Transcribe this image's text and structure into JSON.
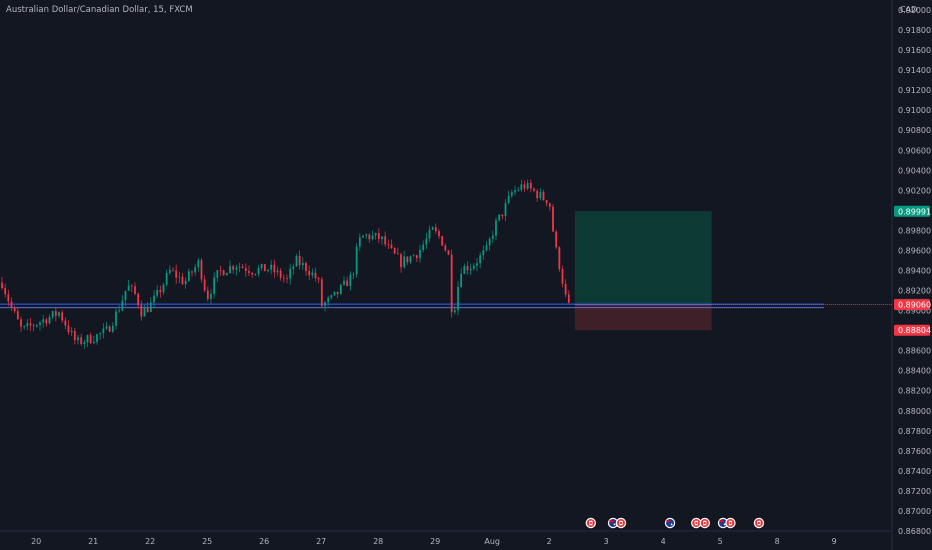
{
  "header": {
    "title": "Australian Dollar/Canadian Dollar, 15, FXCM"
  },
  "chart_data": {
    "type": "candlestick",
    "currency": "CAD",
    "ylim": [
      0.868,
      0.921
    ],
    "y_ticks": [
      "0.92000",
      "0.91800",
      "0.91600",
      "0.91400",
      "0.91200",
      "0.91000",
      "0.90800",
      "0.90600",
      "0.90400",
      "0.90200",
      "0.89800",
      "0.89600",
      "0.89400",
      "0.89200",
      "0.89000",
      "0.88600",
      "0.88400",
      "0.88200",
      "0.88000",
      "0.87800",
      "0.87600",
      "0.87400",
      "0.87200",
      "0.87000",
      "0.86800"
    ],
    "x_ticks": [
      "20",
      "21",
      "22",
      "25",
      "26",
      "27",
      "28",
      "29",
      "Aug",
      "2",
      "3",
      "4",
      "5",
      "8",
      "9"
    ],
    "x_tick_index": [
      0.6,
      1.6,
      2.6,
      3.6,
      4.6,
      5.6,
      6.6,
      7.6,
      8.6,
      9.6,
      10.6,
      11.6,
      12.6,
      13.6,
      14.6
    ],
    "bars_per_day": 18,
    "price_path": [
      [
        0,
        0.8928
      ],
      [
        0.15,
        0.8905
      ],
      [
        0.35,
        0.888
      ],
      [
        0.7,
        0.889
      ],
      [
        1.0,
        0.8898
      ],
      [
        1.3,
        0.8868
      ],
      [
        1.6,
        0.8873
      ],
      [
        1.85,
        0.888
      ],
      [
        2.05,
        0.8902
      ],
      [
        2.2,
        0.8925
      ],
      [
        2.35,
        0.8915
      ],
      [
        2.45,
        0.8898
      ],
      [
        2.6,
        0.8905
      ],
      [
        2.75,
        0.8918
      ],
      [
        2.95,
        0.894
      ],
      [
        3.2,
        0.8928
      ],
      [
        3.45,
        0.8948
      ],
      [
        3.6,
        0.8913
      ],
      [
        3.8,
        0.8938
      ],
      [
        4.1,
        0.8946
      ],
      [
        4.4,
        0.894
      ],
      [
        4.7,
        0.8942
      ],
      [
        5.0,
        0.893
      ],
      [
        5.15,
        0.895
      ],
      [
        5.35,
        0.8942
      ],
      [
        5.55,
        0.893
      ],
      [
        5.6,
        0.8905
      ],
      [
        5.8,
        0.8912
      ],
      [
        6.0,
        0.8925
      ],
      [
        6.15,
        0.8935
      ],
      [
        6.25,
        0.8968
      ],
      [
        6.35,
        0.8975
      ],
      [
        6.65,
        0.8972
      ],
      [
        6.8,
        0.896
      ],
      [
        7.0,
        0.8948
      ],
      [
        7.3,
        0.8958
      ],
      [
        7.55,
        0.898
      ],
      [
        7.7,
        0.8972
      ],
      [
        7.85,
        0.8952
      ],
      [
        7.9,
        0.889
      ],
      [
        8.05,
        0.8942
      ],
      [
        8.25,
        0.8945
      ],
      [
        8.5,
        0.896
      ],
      [
        8.65,
        0.8985
      ],
      [
        8.8,
        0.9
      ],
      [
        8.95,
        0.9018
      ],
      [
        9.15,
        0.9025
      ],
      [
        9.3,
        0.902
      ],
      [
        9.5,
        0.9012
      ],
      [
        9.6,
        0.901
      ],
      [
        9.7,
        0.8965
      ],
      [
        9.8,
        0.894
      ],
      [
        9.9,
        0.891
      ],
      [
        9.95,
        0.8903
      ]
    ],
    "position": {
      "type": "long",
      "entry": 0.8906,
      "target": 0.89991,
      "stop": 0.88804,
      "start_index": 10.05,
      "end_index": 12.45
    },
    "hline_levels": [
      0.89064,
      0.8903
    ],
    "price_labels": [
      {
        "value": 0.89991,
        "text": "0.89991",
        "color": "#089981"
      },
      {
        "value": 0.89064,
        "text": "0.89064",
        "color": "#2a2e39"
      },
      {
        "value": 0.8906,
        "text": "0.89060",
        "color": "#f23645"
      },
      {
        "value": 0.88804,
        "text": "0.88804",
        "color": "#f23645"
      }
    ],
    "events": [
      {
        "index": 10.33,
        "icon": "canada-flag-icon"
      },
      {
        "index": 10.72,
        "icon": "australia-flag-icon"
      },
      {
        "index": 10.86,
        "icon": "canada-flag-icon"
      },
      {
        "index": 11.72,
        "icon": "australia-flag-icon"
      },
      {
        "index": 12.18,
        "icon": "canada-flag-icon"
      },
      {
        "index": 12.33,
        "icon": "canada-flag-icon"
      },
      {
        "index": 12.65,
        "icon": "australia-flag-icon"
      },
      {
        "index": 12.78,
        "icon": "canada-flag-icon"
      },
      {
        "index": 13.28,
        "icon": "canada-flag-icon"
      }
    ],
    "colors": {
      "background": "#131722",
      "up": "#089981",
      "down": "#f23645",
      "target_zone": "#0e3a36",
      "stop_zone": "#3f1f28",
      "line_blue": "#2962ff",
      "line_red": "#f23645",
      "text": "#b2b5be"
    }
  }
}
